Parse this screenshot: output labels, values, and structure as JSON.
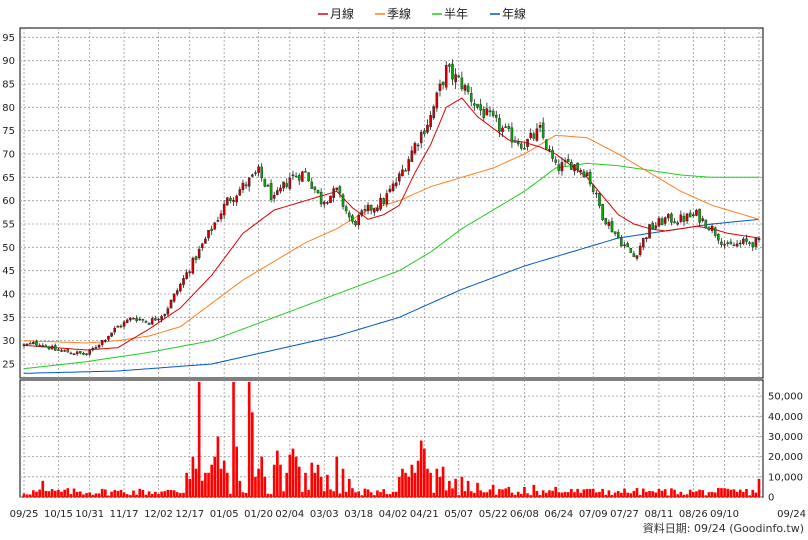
{
  "chart_data": [
    {
      "type": "candlestick",
      "legend": [
        {
          "label": "月線",
          "color": "#dd0000"
        },
        {
          "label": "季線",
          "color": "#ff7f1e"
        },
        {
          "label": "半年",
          "color": "#22cc22"
        },
        {
          "label": "年線",
          "color": "#0055cc"
        }
      ],
      "ylim": [
        22,
        97
      ],
      "yticks": [
        25,
        30,
        35,
        40,
        45,
        50,
        55,
        60,
        65,
        70,
        75,
        80,
        85,
        90,
        95
      ],
      "x_labels": [
        "09/25",
        "10/15",
        "10/31",
        "11/17",
        "12/02",
        "12/17",
        "01/05",
        "01/20",
        "02/04",
        "03/03",
        "03/18",
        "04/02",
        "04/21",
        "05/07",
        "05/22",
        "06/08",
        "06/24",
        "07/09",
        "07/27",
        "08/11",
        "08/26",
        "09/10",
        "09/24"
      ],
      "close_anchors": [
        [
          0,
          29
        ],
        [
          5,
          29.5
        ],
        [
          10,
          28
        ],
        [
          15,
          27.5
        ],
        [
          20,
          27
        ],
        [
          25,
          30
        ],
        [
          30,
          33
        ],
        [
          35,
          35
        ],
        [
          40,
          34
        ],
        [
          45,
          36
        ],
        [
          50,
          42
        ],
        [
          55,
          48
        ],
        [
          60,
          54
        ],
        [
          65,
          60
        ],
        [
          70,
          63
        ],
        [
          75,
          66
        ],
        [
          80,
          60
        ],
        [
          85,
          65
        ],
        [
          90,
          66
        ],
        [
          95,
          60
        ],
        [
          100,
          62
        ],
        [
          105,
          55
        ],
        [
          110,
          58
        ],
        [
          115,
          60
        ],
        [
          120,
          65
        ],
        [
          125,
          72
        ],
        [
          130,
          78
        ],
        [
          135,
          88
        ],
        [
          140,
          85
        ],
        [
          145,
          80
        ],
        [
          150,
          77
        ],
        [
          155,
          74
        ],
        [
          160,
          72
        ],
        [
          165,
          75
        ],
        [
          170,
          67
        ],
        [
          175,
          68
        ],
        [
          180,
          66
        ],
        [
          185,
          57
        ],
        [
          190,
          52
        ],
        [
          195,
          48
        ],
        [
          200,
          54
        ],
        [
          205,
          56
        ],
        [
          210,
          56
        ],
        [
          215,
          57
        ],
        [
          220,
          54
        ],
        [
          225,
          50
        ],
        [
          230,
          51
        ],
        [
          235,
          51
        ]
      ],
      "n_days": 236,
      "month_line": [
        [
          0,
          29
        ],
        [
          20,
          28
        ],
        [
          30,
          28.5
        ],
        [
          40,
          32.5
        ],
        [
          50,
          37
        ],
        [
          60,
          44
        ],
        [
          70,
          53
        ],
        [
          80,
          58
        ],
        [
          90,
          60
        ],
        [
          100,
          62
        ],
        [
          105,
          58.5
        ],
        [
          110,
          56
        ],
        [
          115,
          57
        ],
        [
          120,
          59
        ],
        [
          125,
          66
        ],
        [
          130,
          72
        ],
        [
          135,
          80
        ],
        [
          140,
          82
        ],
        [
          145,
          78
        ],
        [
          150,
          75.5
        ],
        [
          155,
          73
        ],
        [
          160,
          72.5
        ],
        [
          165,
          71.5
        ],
        [
          170,
          70
        ],
        [
          175,
          67.5
        ],
        [
          180,
          65
        ],
        [
          185,
          61
        ],
        [
          190,
          57
        ],
        [
          195,
          55
        ],
        [
          200,
          54
        ],
        [
          205,
          53.5
        ],
        [
          210,
          54
        ],
        [
          215,
          54.5
        ],
        [
          220,
          54
        ],
        [
          225,
          53
        ],
        [
          230,
          52.5
        ],
        [
          235,
          52
        ]
      ],
      "quarter_line": [
        [
          0,
          30
        ],
        [
          20,
          29.5
        ],
        [
          30,
          30
        ],
        [
          40,
          31
        ],
        [
          50,
          33
        ],
        [
          60,
          38
        ],
        [
          70,
          43
        ],
        [
          80,
          47
        ],
        [
          90,
          51
        ],
        [
          100,
          54
        ],
        [
          110,
          58
        ],
        [
          120,
          60
        ],
        [
          130,
          63
        ],
        [
          140,
          65
        ],
        [
          150,
          67
        ],
        [
          160,
          70
        ],
        [
          170,
          74
        ],
        [
          180,
          73.5
        ],
        [
          190,
          70
        ],
        [
          200,
          66
        ],
        [
          210,
          62
        ],
        [
          220,
          59
        ],
        [
          230,
          57
        ],
        [
          235,
          56
        ]
      ],
      "half_line": [
        [
          0,
          24
        ],
        [
          20,
          25.5
        ],
        [
          40,
          27.5
        ],
        [
          60,
          30
        ],
        [
          80,
          35
        ],
        [
          100,
          40
        ],
        [
          120,
          45
        ],
        [
          130,
          49
        ],
        [
          140,
          54
        ],
        [
          150,
          58
        ],
        [
          160,
          62
        ],
        [
          170,
          67
        ],
        [
          180,
          68
        ],
        [
          190,
          67.5
        ],
        [
          200,
          66.5
        ],
        [
          210,
          65.5
        ],
        [
          220,
          65
        ],
        [
          235,
          65
        ]
      ],
      "year_line": [
        [
          0,
          23
        ],
        [
          30,
          23.5
        ],
        [
          60,
          25
        ],
        [
          80,
          28
        ],
        [
          100,
          31
        ],
        [
          120,
          35
        ],
        [
          140,
          41
        ],
        [
          160,
          46
        ],
        [
          180,
          50
        ],
        [
          190,
          52
        ],
        [
          200,
          53
        ],
        [
          210,
          54
        ],
        [
          220,
          55
        ],
        [
          235,
          56
        ]
      ]
    },
    {
      "type": "bar",
      "ylim": [
        0,
        58000
      ],
      "yticks": [
        0,
        10000,
        20000,
        30000,
        40000,
        50000
      ],
      "ytick_labels": [
        "0",
        "10,000",
        "20,000",
        "30,000",
        "40,000",
        "50,000"
      ],
      "color": "#ff0000",
      "spikes": [
        [
          6,
          8000
        ],
        [
          7,
          3000
        ],
        [
          52,
          12000
        ],
        [
          53,
          9000
        ],
        [
          54,
          20000
        ],
        [
          55,
          14000
        ],
        [
          56,
          57000
        ],
        [
          57,
          8000
        ],
        [
          58,
          12000
        ],
        [
          59,
          12000
        ],
        [
          60,
          16000
        ],
        [
          61,
          20000
        ],
        [
          62,
          30000
        ],
        [
          63,
          14000
        ],
        [
          64,
          18000
        ],
        [
          65,
          12000
        ],
        [
          67,
          57000
        ],
        [
          68,
          25000
        ],
        [
          69,
          8000
        ],
        [
          72,
          57000
        ],
        [
          73,
          42000
        ],
        [
          74,
          10000
        ],
        [
          75,
          14000
        ],
        [
          76,
          20000
        ],
        [
          77,
          10000
        ],
        [
          80,
          16000
        ],
        [
          81,
          23000
        ],
        [
          82,
          16000
        ],
        [
          84,
          12000
        ],
        [
          85,
          21000
        ],
        [
          86,
          24000
        ],
        [
          87,
          20000
        ],
        [
          88,
          15000
        ],
        [
          90,
          12000
        ],
        [
          92,
          17000
        ],
        [
          93,
          12000
        ],
        [
          94,
          16000
        ],
        [
          95,
          10000
        ],
        [
          97,
          11000
        ],
        [
          100,
          20000
        ],
        [
          102,
          14000
        ],
        [
          104,
          9000
        ],
        [
          120,
          10000
        ],
        [
          121,
          14000
        ],
        [
          122,
          12000
        ],
        [
          123,
          10000
        ],
        [
          124,
          16000
        ],
        [
          125,
          12000
        ],
        [
          126,
          18000
        ],
        [
          127,
          28000
        ],
        [
          128,
          24000
        ],
        [
          129,
          14000
        ],
        [
          130,
          12000
        ],
        [
          132,
          14000
        ],
        [
          133,
          10000
        ],
        [
          134,
          15000
        ],
        [
          136,
          8000
        ],
        [
          138,
          9000
        ],
        [
          140,
          10000
        ],
        [
          142,
          8000
        ],
        [
          145,
          7000
        ],
        [
          150,
          6000
        ],
        [
          155,
          5000
        ],
        [
          160,
          5000
        ],
        [
          163,
          6000
        ],
        [
          170,
          5000
        ],
        [
          175,
          4000
        ],
        [
          180,
          4000
        ],
        [
          185,
          4000
        ],
        [
          190,
          3000
        ],
        [
          195,
          3000
        ],
        [
          200,
          3000
        ],
        [
          210,
          2500
        ],
        [
          220,
          2500
        ],
        [
          235,
          9000
        ]
      ]
    }
  ],
  "footer": {
    "source": "資料日期: 09/24  (Goodinfo.tw)"
  }
}
